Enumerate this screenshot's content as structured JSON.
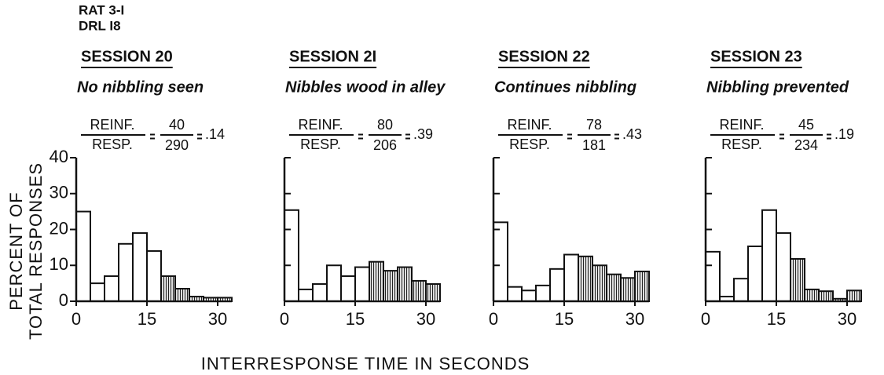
{
  "header": [
    "RAT 3-I",
    "DRL I8"
  ],
  "y_label": [
    "PERCENT OF",
    "TOTAL RESPONSES"
  ],
  "x_label": "INTERRESPONSE TIME IN SECONDS",
  "chart_data": [
    {
      "type": "histogram",
      "title": "SESSION 20",
      "subtitle": "No nibbling seen",
      "ratio": {
        "num_label": "REINF.",
        "den_label": "RESP.",
        "num": 40,
        "den": 290,
        "value": 0.14,
        "value_label": ".14"
      },
      "bins": [
        0,
        3,
        6,
        9,
        12,
        15,
        18,
        21,
        24,
        27,
        30,
        33
      ],
      "values": [
        25,
        5,
        7,
        16,
        19,
        14,
        7,
        3.5,
        1.3,
        1,
        1
      ],
      "shaded_from": 18,
      "xlim": [
        0,
        33
      ],
      "xticks": [
        0,
        15,
        30
      ],
      "ylim": [
        0,
        40
      ],
      "yticks": [
        0,
        10,
        20,
        30,
        40
      ],
      "ytick_labels": true
    },
    {
      "type": "histogram",
      "title": "SESSION 2I",
      "subtitle": "Nibbles wood in alley",
      "ratio": {
        "num_label": "REINF.",
        "den_label": "RESP.",
        "num": 80,
        "den": 206,
        "value": 0.39,
        "value_label": ".39"
      },
      "bins": [
        0,
        3,
        6,
        9,
        12,
        15,
        18,
        21,
        24,
        27,
        30,
        33
      ],
      "values": [
        25.4,
        3.3,
        4.8,
        10,
        7,
        9.5,
        11,
        8.5,
        9.5,
        5.7,
        4.8
      ],
      "shaded_from": 18,
      "xlim": [
        0,
        33
      ],
      "xticks": [
        0,
        15,
        30
      ],
      "ylim": [
        0,
        40
      ],
      "yticks": [
        0,
        10,
        20,
        30,
        40
      ],
      "ytick_labels": false
    },
    {
      "type": "histogram",
      "title": "SESSION 22",
      "subtitle": "Continues nibbling",
      "ratio": {
        "num_label": "REINF.",
        "den_label": "RESP.",
        "num": 78,
        "den": 181,
        "value": 0.43,
        "value_label": ".43"
      },
      "bins": [
        0,
        3,
        6,
        9,
        12,
        15,
        18,
        21,
        24,
        27,
        30,
        33
      ],
      "values": [
        22,
        4,
        3,
        4.4,
        9,
        13,
        12.5,
        10,
        7.5,
        6.5,
        8.3
      ],
      "shaded_from": 18,
      "xlim": [
        0,
        33
      ],
      "xticks": [
        0,
        15,
        30
      ],
      "ylim": [
        0,
        40
      ],
      "yticks": [
        0,
        10,
        20,
        30,
        40
      ],
      "ytick_labels": false
    },
    {
      "type": "histogram",
      "title": "SESSION 23",
      "subtitle": "Nibbling prevented",
      "ratio": {
        "num_label": "REINF.",
        "den_label": "RESP.",
        "num": 45,
        "den": 234,
        "value": 0.19,
        "value_label": ".19"
      },
      "bins": [
        0,
        3,
        6,
        9,
        12,
        15,
        18,
        21,
        24,
        27,
        30,
        33
      ],
      "values": [
        13.8,
        1.3,
        6.3,
        15.3,
        25.4,
        19,
        11.8,
        3.3,
        2.8,
        0.7,
        3
      ],
      "shaded_from": 18,
      "xlim": [
        0,
        33
      ],
      "xticks": [
        0,
        15,
        30
      ],
      "ylim": [
        0,
        40
      ],
      "yticks": [
        0,
        10,
        20,
        30,
        40
      ],
      "ytick_labels": false
    }
  ]
}
